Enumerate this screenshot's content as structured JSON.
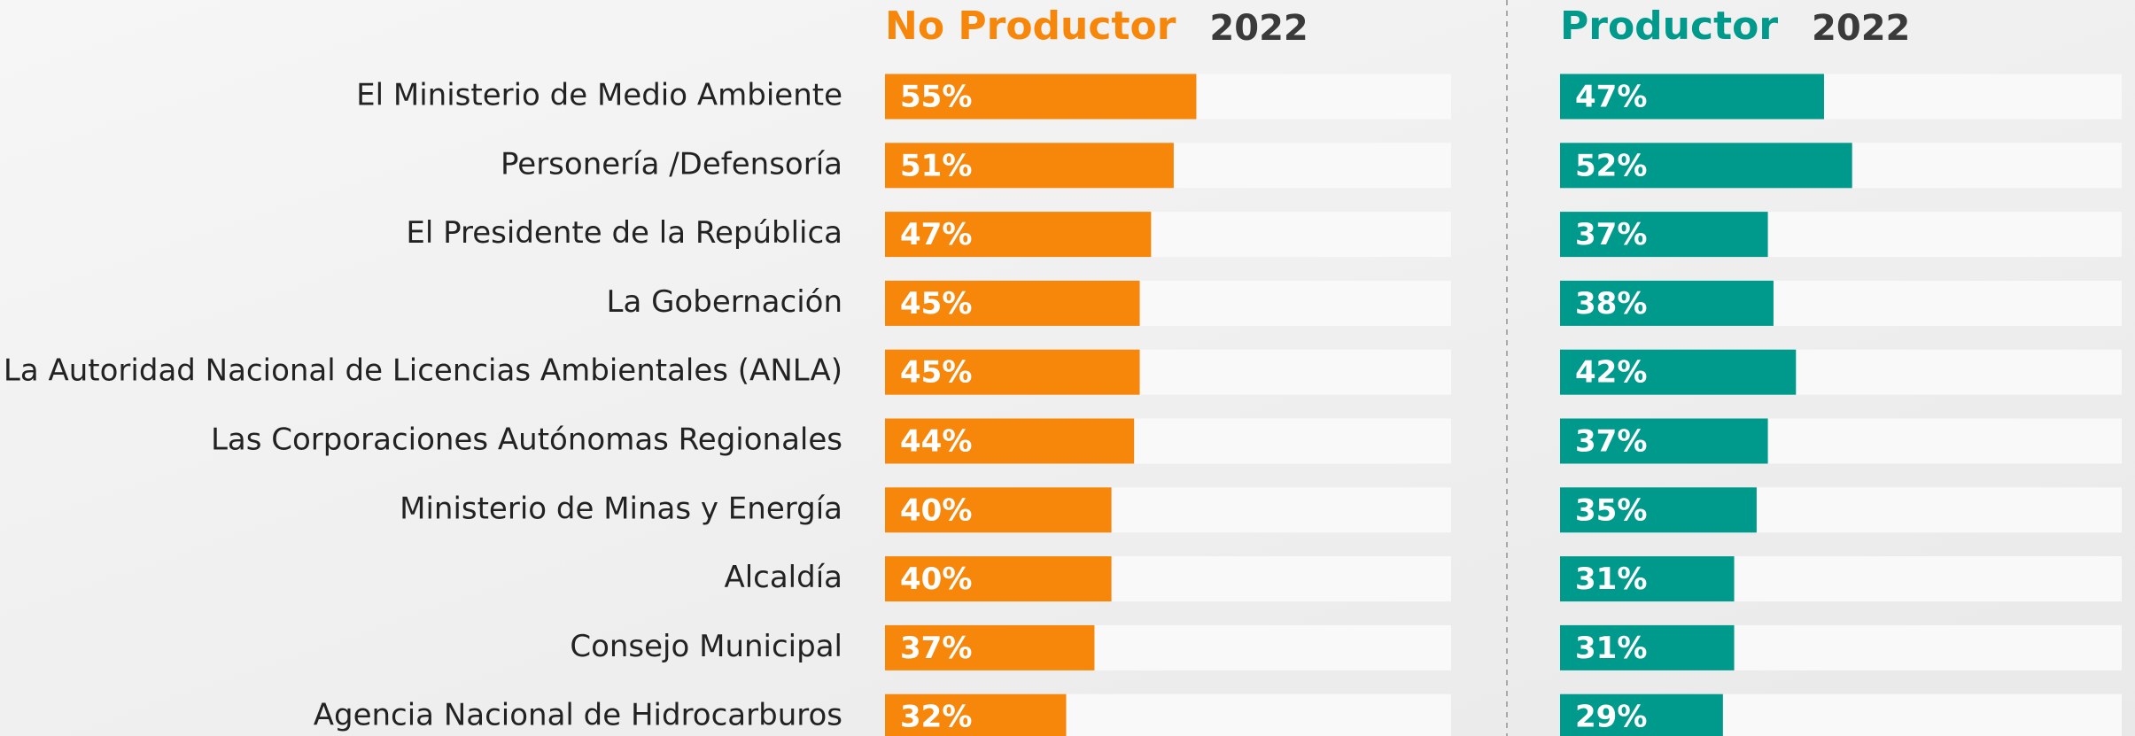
{
  "chart_data": {
    "type": "bar",
    "period": "2022",
    "categories": [
      "El Ministerio de Medio Ambiente",
      "Personería /Defensoría",
      "El Presidente de la República",
      "La Gobernación",
      "La Autoridad Nacional de Licencias Ambientales (ANLA)",
      "Las Corporaciones Autónomas Regionales",
      "Ministerio de Minas y Energía",
      "Alcaldía",
      "Consejo Municipal",
      "Agencia Nacional de Hidrocarburos"
    ],
    "xlim": [
      0,
      100
    ],
    "series": [
      {
        "name": "No Productor",
        "color": "#f7870b",
        "values": [
          55,
          51,
          47,
          45,
          45,
          44,
          40,
          40,
          37,
          32
        ],
        "value_labels": [
          "55%",
          "51%",
          "47%",
          "45%",
          "45%",
          "44%",
          "40%",
          "40%",
          "37%",
          "32%"
        ]
      },
      {
        "name": "Productor",
        "color": "#009a8c",
        "values": [
          47,
          52,
          37,
          38,
          42,
          37,
          35,
          31,
          31,
          29
        ],
        "value_labels": [
          "47%",
          "52%",
          "37%",
          "38%",
          "42%",
          "37%",
          "35%",
          "31%",
          "31%",
          "29%"
        ]
      }
    ]
  }
}
